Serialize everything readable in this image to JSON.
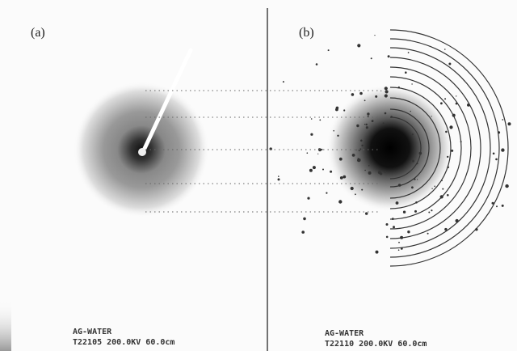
{
  "panels": [
    {
      "label": "(a)",
      "caption": [
        "AG-WATER",
        "T22105 200.0KV 60.0cm"
      ]
    },
    {
      "label": "(b)",
      "caption": [
        "AG-WATER",
        "T22110 200.0KV 60.0cm"
      ]
    }
  ]
}
